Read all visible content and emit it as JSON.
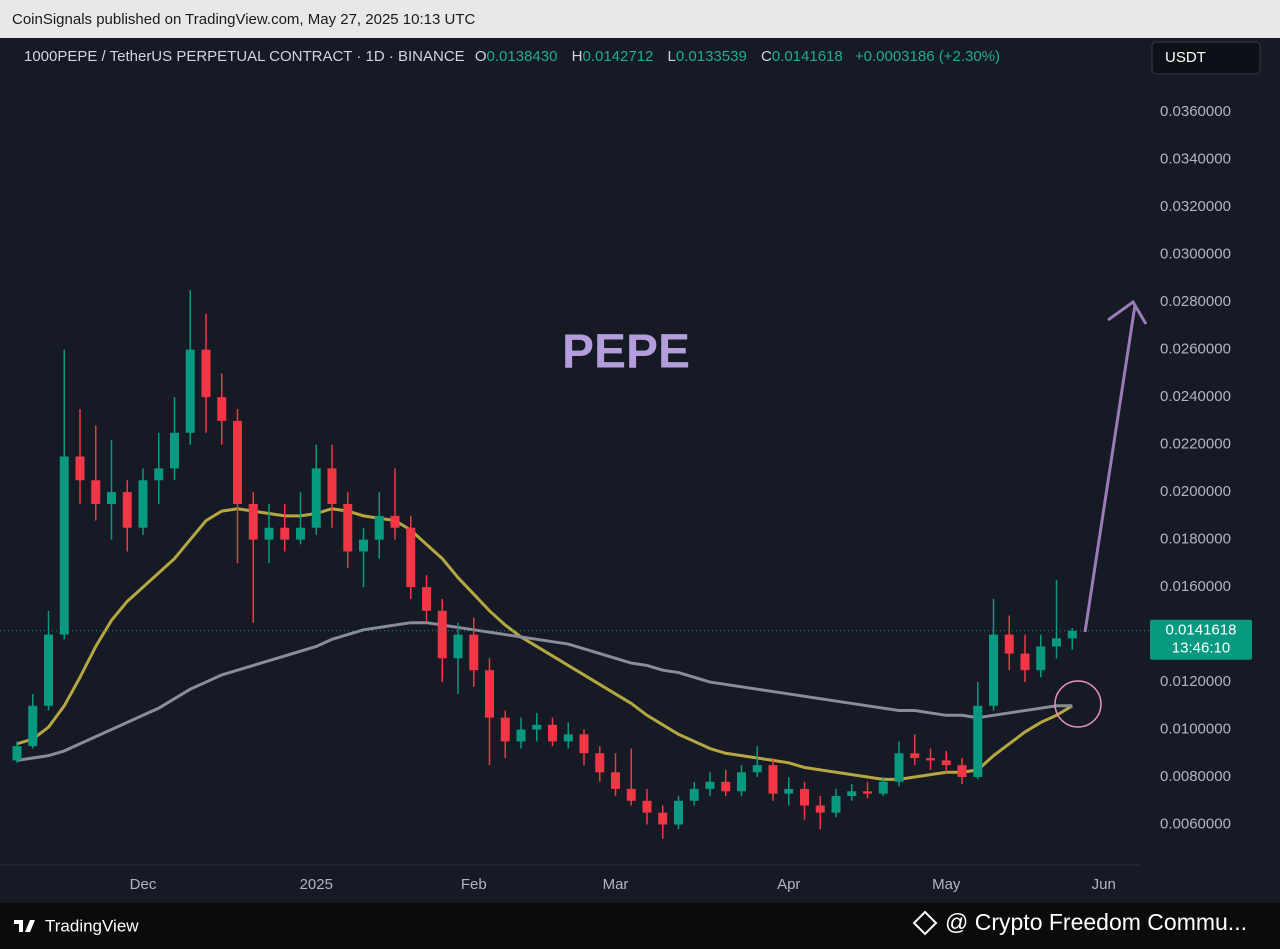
{
  "header": {
    "published": "CoinSignals published on TradingView.com, May 27, 2025 10:13 UTC",
    "symbol": "1000PEPE / TetherUS PERPETUAL CONTRACT · 1D · BINANCE",
    "o_label": "O",
    "o_value": "0.0138430",
    "h_label": "H",
    "h_value": "0.0142712",
    "l_label": "L",
    "l_value": "0.0133539",
    "c_label": "C",
    "c_value": "0.0141618",
    "change": "+0.0003186 (+2.30%)",
    "currency": "USDT"
  },
  "chart_data": {
    "type": "candlestick",
    "annotation": "PEPE",
    "up_color": "#089981",
    "down_color": "#f23645",
    "grid": false,
    "categories": [
      null,
      null,
      null,
      null,
      null,
      null,
      null,
      null,
      "Dec",
      null,
      null,
      null,
      null,
      null,
      null,
      null,
      null,
      null,
      null,
      "2025",
      null,
      null,
      null,
      null,
      null,
      null,
      null,
      null,
      null,
      "Feb",
      null,
      null,
      null,
      null,
      null,
      null,
      null,
      null,
      "Mar",
      null,
      null,
      null,
      null,
      null,
      null,
      null,
      null,
      null,
      null,
      "Apr",
      null,
      null,
      null,
      null,
      null,
      null,
      null,
      null,
      null,
      "May",
      null,
      null,
      null,
      null,
      null,
      null,
      null,
      null,
      null,
      "Jun"
    ],
    "open": [
      0.0087,
      0.0093,
      0.011,
      0.014,
      0.0215,
      0.0205,
      0.0195,
      0.02,
      0.0185,
      0.0205,
      0.021,
      0.0225,
      0.026,
      0.024,
      0.023,
      0.0195,
      0.018,
      0.0185,
      0.018,
      0.0185,
      0.021,
      0.0195,
      0.0175,
      0.018,
      0.019,
      0.0185,
      0.016,
      0.015,
      0.013,
      0.014,
      0.0125,
      0.0105,
      0.0095,
      0.01,
      0.0102,
      0.0095,
      0.0098,
      0.009,
      0.0082,
      0.0075,
      0.007,
      0.0065,
      0.006,
      0.007,
      0.0075,
      0.0078,
      0.0074,
      0.0082,
      0.0085,
      0.0073,
      0.0075,
      0.0068,
      0.0065,
      0.0072,
      0.0074,
      0.0073,
      0.0078,
      0.009,
      0.0088,
      0.0087,
      0.0085,
      0.008,
      0.011,
      0.014,
      0.0132,
      0.0125,
      0.0135,
      0.013843,
      null,
      null
    ],
    "high": [
      0.0095,
      0.0115,
      0.015,
      0.026,
      0.0235,
      0.0228,
      0.0222,
      0.0205,
      0.021,
      0.0225,
      0.024,
      0.0285,
      0.0275,
      0.025,
      0.0235,
      0.02,
      0.0195,
      0.0195,
      0.02,
      0.022,
      0.022,
      0.02,
      0.0185,
      0.02,
      0.021,
      0.019,
      0.0165,
      0.0155,
      0.0145,
      0.0147,
      0.013,
      0.0108,
      0.0105,
      0.0107,
      0.0105,
      0.0103,
      0.01,
      0.0093,
      0.009,
      0.0092,
      0.0075,
      0.0068,
      0.0072,
      0.0078,
      0.0082,
      0.0083,
      0.0085,
      0.0093,
      0.0088,
      0.008,
      0.0078,
      0.0072,
      0.0075,
      0.0077,
      0.0078,
      0.008,
      0.0095,
      0.0098,
      0.0092,
      0.0091,
      0.0088,
      0.012,
      0.0155,
      0.0148,
      0.014,
      0.014,
      0.0163,
      0.0142712,
      null,
      null
    ],
    "low": [
      0.0086,
      0.0092,
      0.0108,
      0.0138,
      0.0195,
      0.0188,
      0.018,
      0.0175,
      0.0182,
      0.0195,
      0.0205,
      0.022,
      0.0225,
      0.022,
      0.017,
      0.0145,
      0.017,
      0.0175,
      0.0178,
      0.0182,
      0.0185,
      0.0168,
      0.016,
      0.0172,
      0.018,
      0.0155,
      0.0145,
      0.012,
      0.0115,
      0.0118,
      0.0085,
      0.0088,
      0.0092,
      0.0095,
      0.0093,
      0.0092,
      0.0085,
      0.0078,
      0.0072,
      0.0068,
      0.006,
      0.0054,
      0.0058,
      0.0068,
      0.0072,
      0.0072,
      0.0072,
      0.008,
      0.007,
      0.0068,
      0.0062,
      0.0058,
      0.0063,
      0.007,
      0.0071,
      0.0072,
      0.0076,
      0.0085,
      0.0083,
      0.0082,
      0.0077,
      0.0079,
      0.0108,
      0.0125,
      0.012,
      0.0122,
      0.013,
      0.0133539,
      null,
      null
    ],
    "close": [
      0.0093,
      0.011,
      0.014,
      0.0215,
      0.0205,
      0.0195,
      0.02,
      0.0185,
      0.0205,
      0.021,
      0.0225,
      0.026,
      0.024,
      0.023,
      0.0195,
      0.018,
      0.0185,
      0.018,
      0.0185,
      0.021,
      0.0195,
      0.0175,
      0.018,
      0.019,
      0.0185,
      0.016,
      0.015,
      0.013,
      0.014,
      0.0125,
      0.0105,
      0.0095,
      0.01,
      0.0102,
      0.0095,
      0.0098,
      0.009,
      0.0082,
      0.0075,
      0.007,
      0.0065,
      0.006,
      0.007,
      0.0075,
      0.0078,
      0.0074,
      0.0082,
      0.0085,
      0.0073,
      0.0075,
      0.0068,
      0.0065,
      0.0072,
      0.0074,
      0.0073,
      0.0078,
      0.009,
      0.0088,
      0.0087,
      0.0085,
      0.008,
      0.011,
      0.014,
      0.0132,
      0.0125,
      0.0135,
      0.013843,
      0.0141618,
      null,
      null
    ],
    "lines": [
      {
        "color": "#b5a642",
        "values": [
          0.0094,
          0.0096,
          0.0101,
          0.011,
          0.0122,
          0.0135,
          0.0146,
          0.0154,
          0.016,
          0.0166,
          0.0172,
          0.018,
          0.0188,
          0.0192,
          0.0193,
          0.0192,
          0.0191,
          0.019,
          0.019,
          0.0191,
          0.0193,
          0.0192,
          0.019,
          0.0189,
          0.0188,
          0.0184,
          0.0178,
          0.0172,
          0.0164,
          0.0157,
          0.015,
          0.0144,
          0.0139,
          0.0135,
          0.0131,
          0.0127,
          0.0123,
          0.0119,
          0.0115,
          0.0111,
          0.0106,
          0.0102,
          0.0098,
          0.0095,
          0.0092,
          0.009,
          0.0089,
          0.0088,
          0.0087,
          0.0086,
          0.0084,
          0.0083,
          0.0082,
          0.0081,
          0.008,
          0.0079,
          0.0079,
          0.008,
          0.0081,
          0.0082,
          0.0082,
          0.0083,
          0.0089,
          0.0094,
          0.0099,
          0.0103,
          0.0106,
          0.011,
          null,
          null
        ]
      },
      {
        "color": "#8a8d96",
        "values": [
          0.0087,
          0.0088,
          0.0089,
          0.0091,
          0.0094,
          0.0097,
          0.01,
          0.0103,
          0.0106,
          0.0109,
          0.0113,
          0.0117,
          0.012,
          0.0123,
          0.0125,
          0.0127,
          0.0129,
          0.0131,
          0.0133,
          0.0135,
          0.0138,
          0.014,
          0.0142,
          0.0143,
          0.0144,
          0.0145,
          0.0145,
          0.0144,
          0.0143,
          0.0142,
          0.0141,
          0.014,
          0.0139,
          0.0138,
          0.0137,
          0.0136,
          0.0134,
          0.0132,
          0.013,
          0.0128,
          0.0127,
          0.0125,
          0.0124,
          0.0122,
          0.012,
          0.0119,
          0.0118,
          0.0117,
          0.0116,
          0.0115,
          0.0114,
          0.0113,
          0.0112,
          0.0111,
          0.011,
          0.0109,
          0.0108,
          0.0108,
          0.0107,
          0.0106,
          0.0106,
          0.0105,
          0.0106,
          0.0107,
          0.0108,
          0.0109,
          0.011,
          0.011,
          null,
          null
        ]
      }
    ],
    "ylim": [
      0.004,
      0.039
    ],
    "yticks": [
      {
        "value": 0.006,
        "label": "0.0060000"
      },
      {
        "value": 0.008,
        "label": "0.0080000"
      },
      {
        "value": 0.01,
        "label": "0.0100000"
      },
      {
        "value": 0.012,
        "label": "0.0120000"
      },
      {
        "value": 0.014,
        "label": "0.0140000"
      },
      {
        "value": 0.016,
        "label": "0.0160000"
      },
      {
        "value": 0.018,
        "label": "0.0180000"
      },
      {
        "value": 0.02,
        "label": "0.0200000"
      },
      {
        "value": 0.022,
        "label": "0.0220000"
      },
      {
        "value": 0.024,
        "label": "0.0240000"
      },
      {
        "value": 0.026,
        "label": "0.0260000"
      },
      {
        "value": 0.028,
        "label": "0.0280000"
      },
      {
        "value": 0.03,
        "label": "0.0300000"
      },
      {
        "value": 0.032,
        "label": "0.0320000"
      },
      {
        "value": 0.034,
        "label": "0.0340000"
      },
      {
        "value": 0.036,
        "label": "0.0360000"
      }
    ],
    "price_label": "0.0141618",
    "countdown": "13:46:10"
  },
  "footer": {
    "brand": "TradingView",
    "credit": "@ Crypto Freedom Commu..."
  }
}
